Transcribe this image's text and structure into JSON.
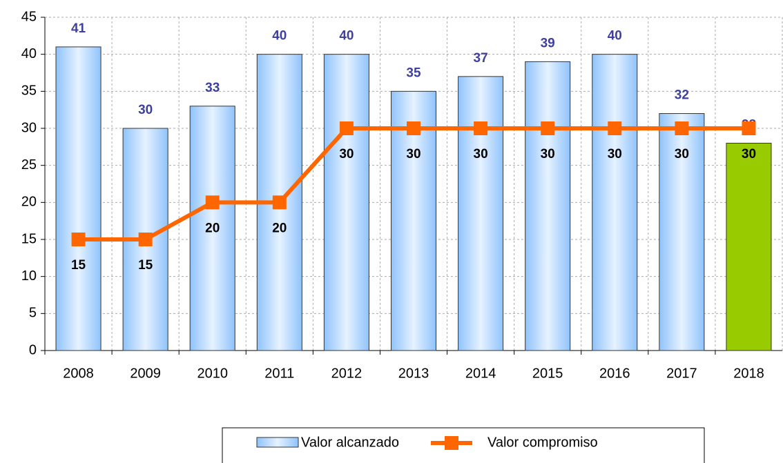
{
  "chart_data": {
    "type": "bar",
    "categories": [
      "2008",
      "2009",
      "2010",
      "2011",
      "2012",
      "2013",
      "2014",
      "2015",
      "2016",
      "2017",
      "2018"
    ],
    "series": [
      {
        "name": "Valor alcanzado",
        "type": "bar",
        "colors": [
          "#99ccff",
          "#99ccff",
          "#99ccff",
          "#99ccff",
          "#99ccff",
          "#99ccff",
          "#99ccff",
          "#99ccff",
          "#99ccff",
          "#99ccff",
          "#99cc00"
        ],
        "values": [
          41,
          30,
          33,
          40,
          40,
          35,
          37,
          39,
          40,
          32,
          28
        ]
      },
      {
        "name": "Valor compromiso",
        "type": "line",
        "color": "#ff6600",
        "values": [
          15,
          15,
          20,
          20,
          30,
          30,
          30,
          30,
          30,
          30,
          30
        ]
      }
    ],
    "ylim": [
      0,
      45
    ],
    "yticks": [
      0,
      5,
      10,
      15,
      20,
      25,
      30,
      35,
      40,
      45
    ],
    "grid": true,
    "legend": "bottom"
  }
}
